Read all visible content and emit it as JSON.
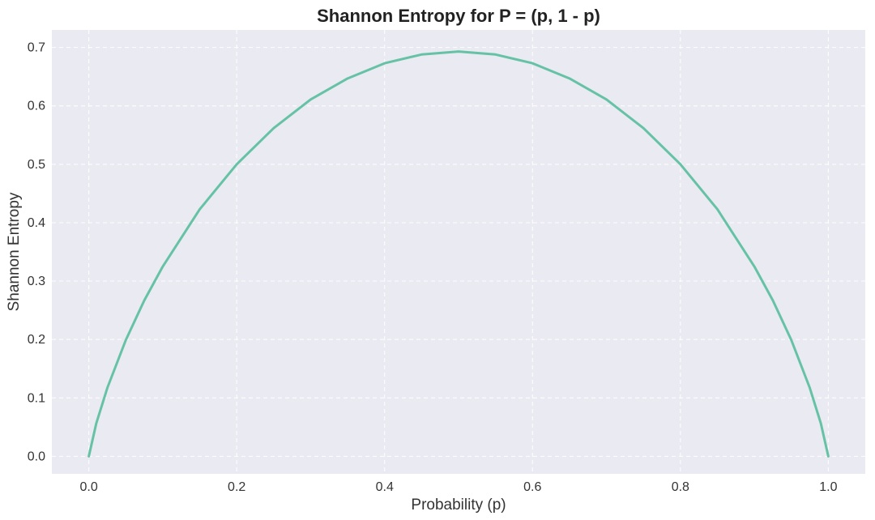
{
  "chart_data": {
    "type": "line",
    "title": "Shannon Entropy for P = (p, 1 - p)",
    "xlabel": "Probability (p)",
    "ylabel": "Shannon Entropy",
    "xlim": [
      -0.05,
      1.05
    ],
    "ylim": [
      -0.03,
      0.73
    ],
    "xticks": [
      "0.0",
      "0.2",
      "0.4",
      "0.6",
      "0.8",
      "1.0"
    ],
    "yticks": [
      "0.0",
      "0.1",
      "0.2",
      "0.3",
      "0.4",
      "0.5",
      "0.6",
      "0.7"
    ],
    "grid": true,
    "legend": "none",
    "colors": {
      "background": "#eaeaf2",
      "grid": "#ffffff",
      "line": "#66c2a5"
    },
    "series": [
      {
        "x": [
          0.0,
          0.01,
          0.025,
          0.05,
          0.075,
          0.1,
          0.15,
          0.2,
          0.25,
          0.3,
          0.35,
          0.4,
          0.45,
          0.5,
          0.55,
          0.6,
          0.65,
          0.7,
          0.75,
          0.8,
          0.85,
          0.9,
          0.925,
          0.95,
          0.975,
          0.99,
          1.0
        ],
        "y": [
          0.0,
          0.056,
          0.117,
          0.199,
          0.267,
          0.325,
          0.423,
          0.5,
          0.562,
          0.611,
          0.647,
          0.673,
          0.688,
          0.693,
          0.688,
          0.673,
          0.647,
          0.611,
          0.562,
          0.5,
          0.423,
          0.325,
          0.267,
          0.199,
          0.117,
          0.056,
          0.0
        ]
      }
    ]
  }
}
